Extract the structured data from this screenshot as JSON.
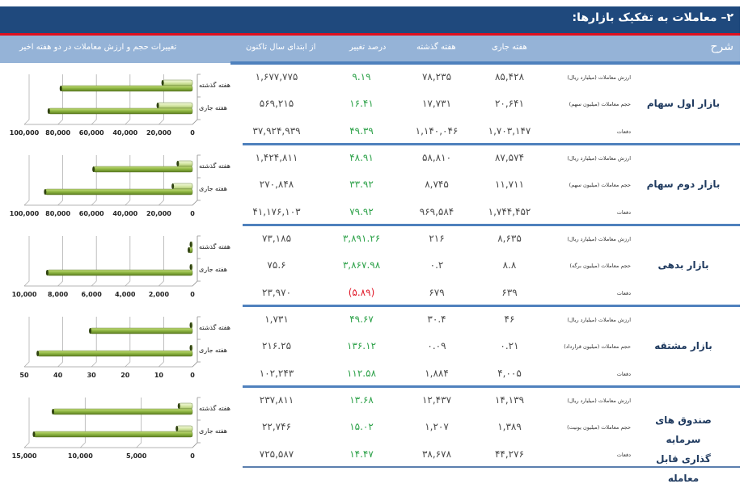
{
  "title": "۲– معاملات به تفکیک بازارها:",
  "header": {
    "description": "شرح",
    "current_week": "هفته جاری",
    "previous_week": "هفته گذشته",
    "percent_change": "درصد تغییر",
    "year_to_date": "از ابتدای سال تاکنون",
    "chart_title": "تغییرات حجم و ارزش معاملات در دو هفته اخیر"
  },
  "colors": {
    "title_bg": "#1f497d",
    "accent_red": "#e0101e",
    "header_bg": "#95b3d7",
    "separator": "#4f81bd",
    "positive": "#2ea24a",
    "negative": "#e01a2a",
    "bar_light": "#d7e8a8",
    "bar_dark": "#8cb440"
  },
  "sections": [
    {
      "name": "بازار اول سهام",
      "rows": [
        {
          "label": "ارزش معاملات (میلیارد ریال)",
          "current": "۸۵,۴۲۸",
          "previous": "۷۸,۲۳۵",
          "pct": "۹.۱۹",
          "pct_negative": false,
          "ytd": "۱,۶۷۷,۷۷۵"
        },
        {
          "label": "حجم معاملات (میلیون سهم)",
          "current": "۲۰,۶۴۱",
          "previous": "۱۷,۷۳۱",
          "pct": "۱۶.۴۱",
          "pct_negative": false,
          "ytd": "۵۶۹,۲۱۵"
        },
        {
          "label": "دفعات",
          "current": "۱,۷۰۳,۱۴۷",
          "previous": "۱,۱۴۰,۰۴۶",
          "pct": "۴۹.۳۹",
          "pct_negative": false,
          "ytd": "۳۷,۹۲۴,۹۳۹"
        }
      ]
    },
    {
      "name": "بازار دوم سهام",
      "rows": [
        {
          "label": "ارزش معاملات (میلیارد ریال)",
          "current": "۸۷,۵۷۴",
          "previous": "۵۸,۸۱۰",
          "pct": "۴۸.۹۱",
          "pct_negative": false,
          "ytd": "۱,۴۲۴,۸۱۱"
        },
        {
          "label": "حجم معاملات (میلیون سهم)",
          "current": "۱۱,۷۱۱",
          "previous": "۸,۷۴۵",
          "pct": "۳۳.۹۲",
          "pct_negative": false,
          "ytd": "۲۷۰,۸۴۸"
        },
        {
          "label": "دفعات",
          "current": "۱,۷۴۴,۴۵۲",
          "previous": "۹۶۹,۵۸۴",
          "pct": "۷۹.۹۲",
          "pct_negative": false,
          "ytd": "۴۱,۱۷۶,۱۰۳"
        }
      ]
    },
    {
      "name": "بازار بدهی",
      "rows": [
        {
          "label": "ارزش معاملات (میلیارد ریال)",
          "current": "۸,۶۳۵",
          "previous": "۲۱۶",
          "pct": "۳,۸۹۱.۲۶",
          "pct_negative": false,
          "ytd": "۷۳,۱۸۵"
        },
        {
          "label": "حجم معاملات (میلیون برگه)",
          "current": "۸.۸",
          "previous": "۰.۲",
          "pct": "۳,۸۶۷.۹۸",
          "pct_negative": false,
          "ytd": "۷۵.۶"
        },
        {
          "label": "دفعات",
          "current": "۶۳۹",
          "previous": "۶۷۹",
          "pct": "(۵.۸۹)",
          "pct_negative": true,
          "ytd": "۲۳,۹۷۰"
        }
      ]
    },
    {
      "name": "بازار مشتقه",
      "rows": [
        {
          "label": "ارزش معاملات (میلیارد ریال)",
          "current": "۴۶",
          "previous": "۳۰.۴",
          "pct": "۴۹.۶۷",
          "pct_negative": false,
          "ytd": "۱,۷۳۱"
        },
        {
          "label": "حجم معاملات (میلیون قرارداد)",
          "current": "۰.۲۱",
          "previous": "۰.۰۹",
          "pct": "۱۳۶.۱۲",
          "pct_negative": false,
          "ytd": "۲۱۶.۲۵"
        },
        {
          "label": "دفعات",
          "current": "۴,۰۰۵",
          "previous": "۱,۸۸۴",
          "pct": "۱۱۲.۵۸",
          "pct_negative": false,
          "ytd": "۱۰۲,۲۴۳"
        }
      ]
    },
    {
      "name": "صندوق های سرمایه گذاری قابل معامله",
      "name_line1": "صندوق های سرمایه",
      "name_line2": "گذاری قابل معامله",
      "rows": [
        {
          "label": "ارزش معاملات (میلیارد ریال)",
          "current": "۱۴,۱۳۹",
          "previous": "۱۲,۴۳۷",
          "pct": "۱۳.۶۸",
          "pct_negative": false,
          "ytd": "۲۳۷,۸۱۱"
        },
        {
          "label": "حجم معاملات (میلیون یونیت)",
          "current": "۱,۳۸۹",
          "previous": "۱,۲۰۷",
          "pct": "۱۵.۰۲",
          "pct_negative": false,
          "ytd": "۲۲,۷۴۶"
        },
        {
          "label": "دفعات",
          "current": "۴۴,۲۷۶",
          "previous": "۳۸,۶۷۸",
          "pct": "۱۴.۴۷",
          "pct_negative": false,
          "ytd": "۷۲۵,۵۸۷"
        }
      ]
    }
  ],
  "chart_data": [
    {
      "type": "bar",
      "orientation": "horizontal",
      "categories": [
        "هفته گذشته",
        "هفته جاری"
      ],
      "series": [
        {
          "name": "حجم معاملات",
          "values": [
            17731,
            20641
          ]
        },
        {
          "name": "ارزش معاملات",
          "values": [
            78235,
            85428
          ]
        }
      ],
      "xlim": [
        0,
        100000
      ],
      "ticks": [
        "100,000",
        "80,000",
        "60,000",
        "40,000",
        "20,000",
        "0"
      ],
      "tick_values": [
        100000,
        80000,
        60000,
        40000,
        20000,
        0
      ],
      "x_reversed": true,
      "grid": true
    },
    {
      "type": "bar",
      "orientation": "horizontal",
      "categories": [
        "هفته گذشته",
        "هفته جاری"
      ],
      "series": [
        {
          "name": "حجم معاملات",
          "values": [
            8745,
            11711
          ]
        },
        {
          "name": "ارزش معاملات",
          "values": [
            58810,
            87574
          ]
        }
      ],
      "xlim": [
        0,
        100000
      ],
      "ticks": [
        "100,000",
        "80,000",
        "60,000",
        "40,000",
        "20,000",
        "0"
      ],
      "tick_values": [
        100000,
        80000,
        60000,
        40000,
        20000,
        0
      ],
      "x_reversed": true,
      "grid": true
    },
    {
      "type": "bar",
      "orientation": "horizontal",
      "categories": [
        "هفته گذشته",
        "هفته جاری"
      ],
      "series": [
        {
          "name": "حجم معاملات",
          "values": [
            0.2,
            8.8
          ]
        },
        {
          "name": "ارزش معاملات",
          "values": [
            216,
            8635
          ]
        }
      ],
      "xlim": [
        0,
        10000
      ],
      "ticks": [
        "10,000",
        "8,000",
        "6,000",
        "4,000",
        "2,000",
        "0"
      ],
      "tick_values": [
        10000,
        8000,
        6000,
        4000,
        2000,
        0
      ],
      "x_reversed": true,
      "grid": true
    },
    {
      "type": "bar",
      "orientation": "horizontal",
      "categories": [
        "هفته گذشته",
        "هفته جاری"
      ],
      "series": [
        {
          "name": "حجم معاملات",
          "values": [
            0.09,
            0.21
          ]
        },
        {
          "name": "ارزش معاملات",
          "values": [
            30.4,
            46
          ]
        }
      ],
      "xlim": [
        0,
        50
      ],
      "ticks": [
        "50",
        "40",
        "30",
        "20",
        "10",
        "0"
      ],
      "tick_values": [
        50,
        40,
        30,
        20,
        10,
        0
      ],
      "x_reversed": true,
      "grid": true
    },
    {
      "type": "bar",
      "orientation": "horizontal",
      "categories": [
        "هفته گذشته",
        "هفته جاری"
      ],
      "series": [
        {
          "name": "حجم معاملات",
          "values": [
            1207,
            1389
          ]
        },
        {
          "name": "ارزش معاملات",
          "values": [
            12437,
            14139
          ]
        }
      ],
      "xlim": [
        0,
        15000
      ],
      "ticks": [
        "15,000",
        "10,000",
        "5,000",
        "0"
      ],
      "tick_values": [
        15000,
        10000,
        5000,
        0
      ],
      "x_reversed": true,
      "grid": true
    }
  ]
}
